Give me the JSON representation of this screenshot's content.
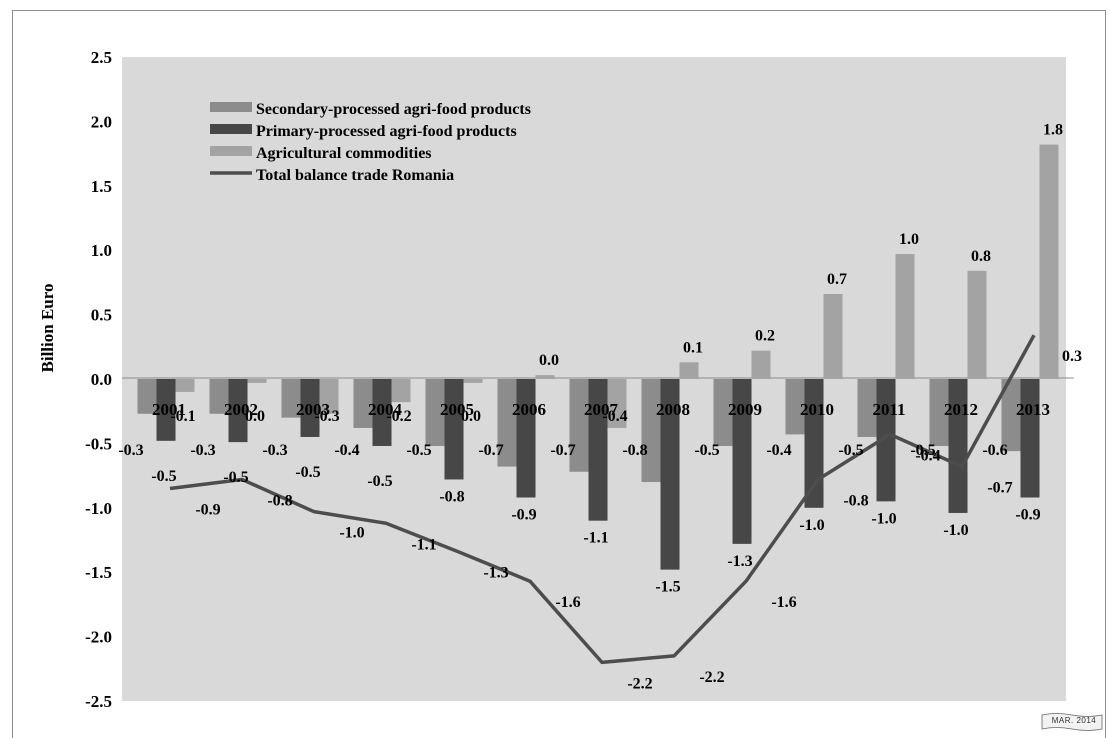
{
  "chart_data": {
    "type": "bar",
    "title": "",
    "xlabel": "",
    "ylabel": "Billion  Euro",
    "ylim": [
      -2.5,
      2.5
    ],
    "yticks": [
      "2.5",
      "2.0",
      "1.5",
      "1.0",
      "0.5",
      "0.0",
      "-0.5",
      "-1.0",
      "-1.5",
      "-2.0",
      "-2.5"
    ],
    "ytick_values": [
      2.5,
      2.0,
      1.5,
      1.0,
      0.5,
      0.0,
      -0.5,
      -1.0,
      -1.5,
      -2.0,
      -2.5
    ],
    "categories": [
      "2001",
      "2002",
      "2003",
      "2004",
      "2005",
      "2006",
      "2007",
      "2008",
      "2009",
      "2010",
      "2011",
      "2012",
      "2013"
    ],
    "legend_position": "top-left",
    "grid": false,
    "series": [
      {
        "name": "Secondary-processed agri-food products",
        "kind": "bar",
        "color": "#8c8c8c",
        "values": [
          -0.27,
          -0.27,
          -0.3,
          -0.38,
          -0.52,
          -0.68,
          -0.72,
          -0.8,
          -0.52,
          -0.43,
          -0.45,
          -0.52,
          -0.56
        ],
        "labels": [
          "-0.3",
          "-0.3",
          "-0.3",
          "-0.4",
          "-0.5",
          "-0.7",
          "-0.7",
          "-0.8",
          "-0.5",
          "-0.4",
          "-0.5",
          "-0.5",
          "-0.6"
        ]
      },
      {
        "name": "Primary-processed agri-food  products",
        "kind": "bar",
        "color": "#474747",
        "values": [
          -0.48,
          -0.49,
          -0.45,
          -0.52,
          -0.78,
          -0.92,
          -1.1,
          -1.48,
          -1.28,
          -1.0,
          -0.95,
          -1.04,
          -0.92
        ],
        "labels": [
          "-0.5",
          "-0.5",
          "-0.5",
          "-0.5",
          "-0.8",
          "-0.9",
          "-1.1",
          "-1.5",
          "-1.3",
          "-1.0",
          "-1.0",
          "-1.0",
          "-0.9"
        ]
      },
      {
        "name": "Agricultural commodities",
        "kind": "bar",
        "color": "#a3a3a3",
        "values": [
          -0.1,
          -0.03,
          -0.27,
          -0.18,
          -0.03,
          0.03,
          -0.38,
          0.13,
          0.22,
          0.66,
          0.97,
          0.84,
          1.82
        ],
        "labels": [
          "-0.1",
          "0.0",
          "-0.3",
          "-0.2",
          "0.0",
          "0.0",
          "-0.4",
          "0.1",
          "0.2",
          "0.7",
          "1.0",
          "0.8",
          "1.8"
        ]
      },
      {
        "name": "Total balance trade Romania",
        "kind": "line",
        "color": "#4d4d4d",
        "values": [
          -0.85,
          -0.78,
          -1.03,
          -1.12,
          -1.34,
          -1.57,
          -2.2,
          -2.15,
          -1.57,
          -0.78,
          -0.43,
          -0.68,
          0.34
        ],
        "labels": [
          "-0.9",
          "-0.8",
          "-1.0",
          "-1.1",
          "-1.3",
          "-1.6",
          "-2.2",
          "-2.2",
          "-1.6",
          "-0.8",
          "-0.4",
          "-0.7",
          "0.3"
        ]
      }
    ]
  },
  "stamp": "MAR. 2014"
}
